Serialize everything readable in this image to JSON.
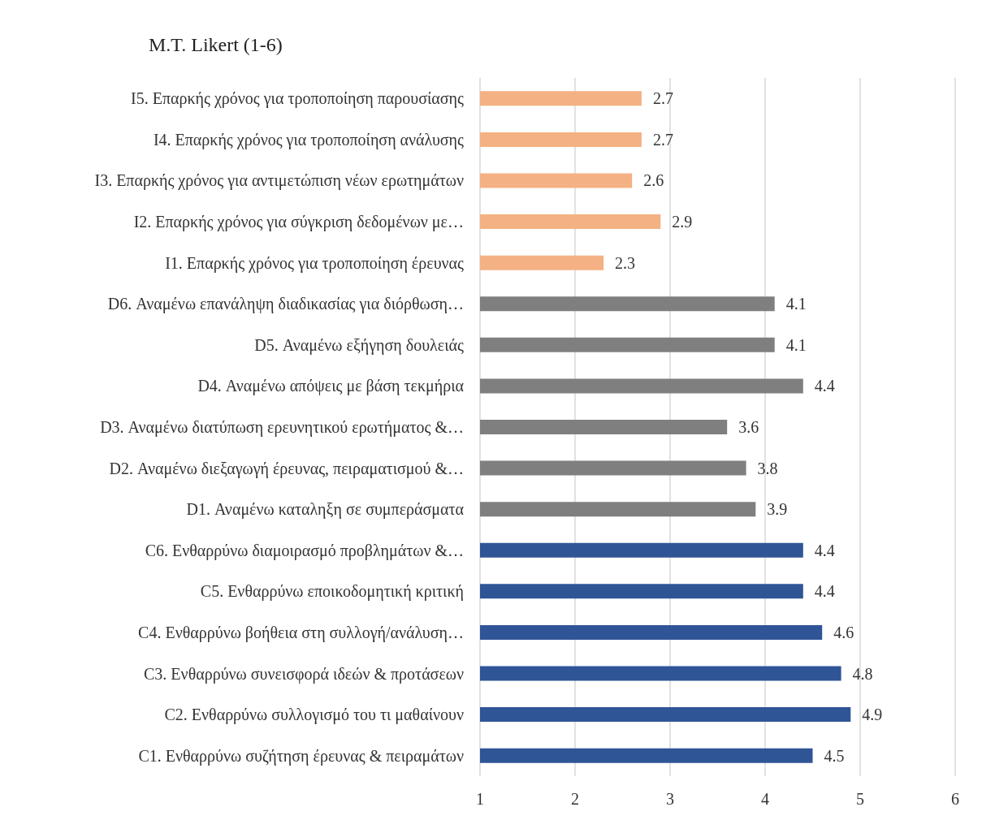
{
  "chart_data": {
    "type": "bar",
    "orientation": "horizontal",
    "title": "M.T. Likert (1-6)",
    "categories": [
      "I5. Επαρκής χρόνος για τροποποίηση παρουσίασης",
      "I4. Επαρκής χρόνος για τροποποίηση ανάλυσης",
      "I3. Επαρκής χρόνος για αντιμετώπιση νέων ερωτημάτων",
      "I2. Επαρκής χρόνος για σύγκριση δεδομένων με…",
      "I1. Επαρκής χρόνος για τροποποίηση έρευνας",
      "D6. Αναμένω επανάληψη διαδικασίας για διόρθωση…",
      "D5. Αναμένω εξήγηση δουλειάς",
      "D4. Αναμένω απόψεις με βάση τεκμήρια",
      "D3. Αναμένω διατύπωση ερευνητικού ερωτήματος &…",
      "D2. Αναμένω διεξαγωγή έρευνας, πειραματισμού &…",
      "D1. Αναμένω καταληξη σε συμπεράσματα",
      "C6. Ενθαρρύνω διαμοιρασμό προβλημάτων &…",
      "C5. Ενθαρρύνω εποικοδομητική κριτική",
      "C4. Ενθαρρύνω βοήθεια στη συλλογή/ανάλυση…",
      "C3. Ενθαρρύνω συνεισφορά ιδεών & προτάσεων",
      "C2. Ενθαρρύνω συλλογισμό του τι μαθαίνουν",
      "C1. Ενθαρρύνω συζήτηση έρευνας & πειραμάτων"
    ],
    "values": [
      2.7,
      2.7,
      2.6,
      2.9,
      2.3,
      4.1,
      4.1,
      4.4,
      3.6,
      3.8,
      3.9,
      4.4,
      4.4,
      4.6,
      4.8,
      4.9,
      4.5
    ],
    "colors": [
      "#f4b183",
      "#f4b183",
      "#f4b183",
      "#f4b183",
      "#f4b183",
      "#7f7f7f",
      "#7f7f7f",
      "#7f7f7f",
      "#7f7f7f",
      "#7f7f7f",
      "#7f7f7f",
      "#2f5597",
      "#2f5597",
      "#2f5597",
      "#2f5597",
      "#2f5597",
      "#2f5597"
    ],
    "xlim": [
      1,
      6
    ],
    "xticks": [
      1,
      2,
      3,
      4,
      5,
      6
    ],
    "grid": "x",
    "data_labels": true
  }
}
